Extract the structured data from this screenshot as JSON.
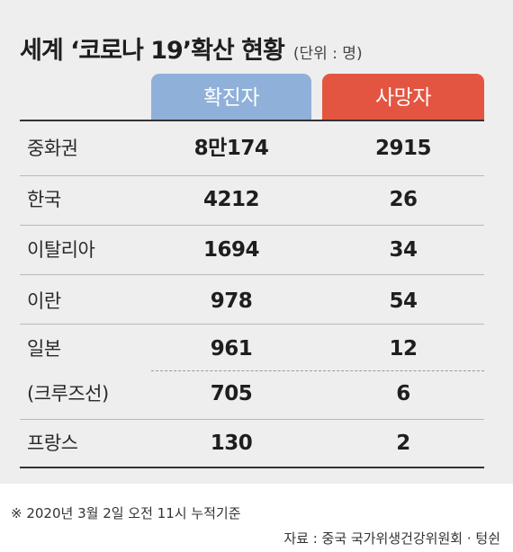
{
  "title": "세계 ‘코로나 19’확산 현황",
  "unit": "(단위 : 명)",
  "columns": {
    "confirmed": "확진자",
    "deaths": "사망자"
  },
  "colors": {
    "confirmed_header": "#8fb0d9",
    "deaths_header": "#e45541",
    "background": "#eeeeee"
  },
  "rows": [
    {
      "country": "중화권",
      "confirmed": "8만174",
      "deaths": "2915"
    },
    {
      "country": "한국",
      "confirmed": "4212",
      "deaths": "26"
    },
    {
      "country": "이탈리아",
      "confirmed": "1694",
      "deaths": "34"
    },
    {
      "country": "이란",
      "confirmed": "978",
      "deaths": "54"
    },
    {
      "country": "일본",
      "confirmed": "961",
      "deaths": "12"
    },
    {
      "country": "(크루즈선)",
      "confirmed": "705",
      "deaths": "6"
    },
    {
      "country": "프랑스",
      "confirmed": "130",
      "deaths": "2"
    }
  ],
  "footnote": "※ 2020년 3월 2일 오전 11시 누적기준",
  "source": "자료 : 중국 국가위생건강위원회 · 텅쉰"
}
